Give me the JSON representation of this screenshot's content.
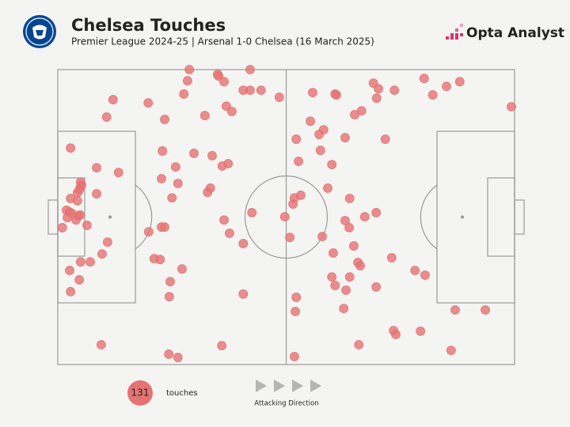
{
  "chart_data": {
    "type": "scatter",
    "title": "Chelsea Touches",
    "subtitle": "Premier League 2024-25 | Arsenal 1-0 Chelsea (16 March 2025)",
    "brand": "Opta Analyst",
    "count": 131,
    "count_label": "touches",
    "direction_label": "Attacking Direction",
    "color": "#e57373",
    "xlim": [
      0,
      100
    ],
    "ylim": [
      0,
      100
    ],
    "x": [
      28.8,
      35,
      35.2,
      42.1,
      28.4,
      36.4,
      40.6,
      42.1,
      44.5,
      48.5,
      27.6,
      12.1,
      19.8,
      36.9,
      38.1,
      32.2,
      10.7,
      23.4,
      2.8,
      22.9,
      29.8,
      33.8,
      36,
      37.3,
      25.8,
      8.5,
      13.3,
      22.7,
      26.3,
      5,
      5.2,
      4.7,
      5,
      4.3,
      8.5,
      33.4,
      32.8,
      25,
      2.8,
      4.3,
      1.9,
      2.6,
      3.1,
      2.1,
      4.5,
      4.9,
      4,
      1,
      6.4,
      36.4,
      42.5,
      19.9,
      22.7,
      23.4,
      37.6,
      10.9,
      40.6,
      9.7,
      21.1,
      22.4,
      5,
      7.1,
      2.6,
      27.2,
      4.7,
      24.6,
      2.8,
      24.4,
      40.6,
      9.5,
      35.9,
      24.3,
      26.3,
      69.1,
      70.2,
      61,
      60.7,
      55.8,
      73.7,
      80.2,
      85.1,
      88,
      82.1,
      69.8,
      99.3,
      66.5,
      65,
      55.3,
      58.2,
      57.2,
      62.9,
      71.7,
      52.2,
      57.5,
      52.7,
      60,
      59.1,
      53.2,
      51.8,
      63.9,
      51.5,
      49.7,
      69.7,
      67.2,
      62.9,
      63.8,
      50.8,
      57.9,
      64.8,
      60.3,
      73.1,
      65.7,
      66.2,
      78.2,
      80.4,
      60,
      63.9,
      60.7,
      63.1,
      69.7,
      52.2,
      62.6,
      87,
      93.6,
      52,
      73.5,
      74,
      79.4,
      65.9,
      86.1,
      51.8
    ],
    "values": [
      100,
      98.4,
      97.8,
      100,
      96.2,
      95.9,
      93,
      93,
      93,
      90.6,
      91.7,
      89.8,
      88.7,
      87.6,
      85.8,
      84.4,
      83.9,
      83.1,
      73.4,
      72.4,
      71.6,
      70.8,
      67.3,
      68.1,
      67,
      66.7,
      65.1,
      63,
      61.4,
      61.9,
      60.8,
      59.2,
      60.3,
      58.2,
      57.9,
      59.8,
      58.4,
      56.5,
      56.3,
      55.5,
      52.3,
      51.7,
      51.2,
      49.8,
      50.4,
      50.7,
      49,
      46.4,
      47.2,
      49,
      51.5,
      45,
      46.6,
      46.6,
      44.5,
      41.5,
      41,
      37.5,
      35.9,
      35.6,
      34.8,
      34.8,
      31.9,
      32.4,
      28.7,
      28.1,
      24.7,
      23,
      23.9,
      6.7,
      6.4,
      3.5,
      2.4,
      95.4,
      93.5,
      91.4,
      91.7,
      92.2,
      93,
      97,
      94.3,
      95.9,
      91.4,
      90.3,
      87.4,
      86,
      84.7,
      82.5,
      79.6,
      78,
      76.9,
      76.4,
      76.4,
      72.6,
      68.9,
      67.8,
      59.8,
      57.4,
      56.5,
      56.3,
      54.4,
      50.1,
      51.5,
      50.1,
      48.8,
      46.4,
      43.1,
      43.4,
      40.2,
      37.8,
      36.2,
      34.6,
      33.5,
      31.9,
      30.3,
      29.7,
      29.7,
      26.8,
      25.2,
      26.3,
      22.8,
      19,
      18.5,
      18.5,
      18,
      11.5,
      10.2,
      11.3,
      6.7,
      4.8,
      2.7
    ]
  }
}
